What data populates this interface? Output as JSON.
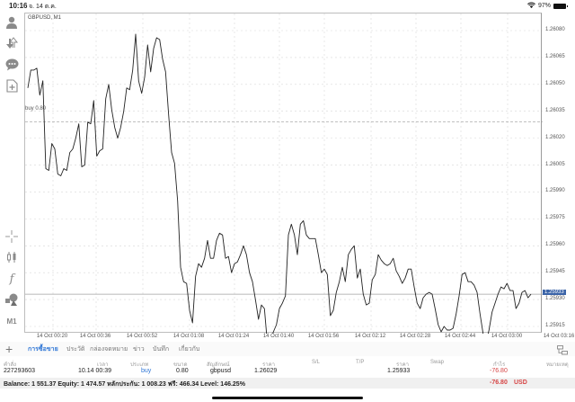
{
  "status_bar": {
    "time": "10:16",
    "date": "จ. 14 ต.ค.",
    "battery": "97%"
  },
  "chart": {
    "symbol_title": "GBPUSD, M1",
    "buy_line_label": "buy 0.80",
    "current_price": "1.25933"
  },
  "left_toolbar": {
    "items": [
      {
        "name": "account-icon"
      },
      {
        "name": "trade-icon"
      },
      {
        "name": "chat-icon"
      },
      {
        "name": "new-document-icon"
      },
      {
        "name": "crosshair-icon"
      },
      {
        "name": "candlestick-icon"
      },
      {
        "name": "indicator-icon"
      },
      {
        "name": "objects-icon"
      }
    ],
    "timeframe": "M1"
  },
  "chart_data": {
    "type": "line",
    "title": "GBPUSD, M1",
    "xlabel": "",
    "ylabel": "",
    "x_ticks": [
      "14 Oct 00:20",
      "14 Oct 00:36",
      "14 Oct 00:52",
      "14 Oct 01:08",
      "14 Oct 01:24",
      "14 Oct 01:40",
      "14 Oct 01:56",
      "14 Oct 02:12",
      "14 Oct 02:28",
      "14 Oct 02:44",
      "14 Oct 03:00",
      "14 Oct 03:16"
    ],
    "y_ticks": [
      "1.26080",
      "1.26065",
      "1.26050",
      "1.26035",
      "1.26020",
      "1.26005",
      "1.25990",
      "1.25975",
      "1.25960",
      "1.25945",
      "1.25930",
      "1.25915"
    ],
    "ylim": [
      1.25905,
      1.26088
    ],
    "grid": true,
    "horizontal_lines": [
      {
        "label": "buy 0.80",
        "value": 1.26029,
        "style": "dashed"
      },
      {
        "label": "bid",
        "value": 1.25933,
        "style": "solid"
      }
    ],
    "series": [
      {
        "name": "GBPUSD close",
        "values": [
          1.26048,
          1.26058,
          1.26058,
          1.26059,
          1.26044,
          1.26052,
          1.26003,
          1.26002,
          1.26017,
          1.26014,
          1.26,
          1.25999,
          1.26003,
          1.26002,
          1.26012,
          1.26014,
          1.2602,
          1.26028,
          1.26004,
          1.26005,
          1.26029,
          1.26028,
          1.26041,
          1.2601,
          1.26013,
          1.26014,
          1.26042,
          1.2605,
          1.26036,
          1.26026,
          1.2602,
          1.26026,
          1.26035,
          1.26048,
          1.26047,
          1.26058,
          1.26078,
          1.26052,
          1.26045,
          1.26054,
          1.26072,
          1.26057,
          1.2607,
          1.26076,
          1.26075,
          1.26064,
          1.26057,
          1.26033,
          1.26012,
          1.26006,
          1.25985,
          1.25948,
          1.2594,
          1.25939,
          1.25924,
          1.25917,
          1.25943,
          1.2595,
          1.25948,
          1.25953,
          1.25963,
          1.25953,
          1.25953,
          1.25963,
          1.25967,
          1.25966,
          1.25953,
          1.25954,
          1.25945,
          1.2595,
          1.25951,
          1.25955,
          1.2596,
          1.25955,
          1.25945,
          1.2594,
          1.2593,
          1.25919,
          1.25927,
          1.25925,
          1.25905,
          1.25907,
          1.25912,
          1.25916,
          1.25925,
          1.25928,
          1.25932,
          1.25966,
          1.25972,
          1.25966,
          1.25955,
          1.25972,
          1.25974,
          1.25966,
          1.25964,
          1.25964,
          1.25964,
          1.25955,
          1.25945,
          1.25947,
          1.25944,
          1.25921,
          1.25924,
          1.25934,
          1.2594,
          1.25948,
          1.2594,
          1.25955,
          1.25958,
          1.2596,
          1.25942,
          1.25947,
          1.25933,
          1.25927,
          1.25928,
          1.25941,
          1.25944,
          1.25955,
          1.25952,
          1.2595,
          1.25949,
          1.2595,
          1.25953,
          1.25946,
          1.25943,
          1.25939,
          1.25942,
          1.25947,
          1.25947,
          1.25937,
          1.25928,
          1.25925,
          1.25931,
          1.25933,
          1.25934,
          1.25933,
          1.25925,
          1.25916,
          1.25912,
          1.25915,
          1.25913,
          1.25913,
          1.25914,
          1.25922,
          1.25932,
          1.25944,
          1.25945,
          1.2594,
          1.2594,
          1.25938,
          1.25934,
          1.25922,
          1.25911,
          1.25906,
          1.25913,
          1.25923,
          1.25928,
          1.25933,
          1.25937,
          1.25936,
          1.25939,
          1.25935,
          1.25935,
          1.25925,
          1.25928,
          1.25934,
          1.25935,
          1.25931,
          1.25933
        ]
      }
    ]
  },
  "tabs": {
    "add_label": "+",
    "items": [
      {
        "label": "การซื้อขาย",
        "active": true
      },
      {
        "label": "ประวัติ",
        "active": false
      },
      {
        "label": "กล่องจดหมาย",
        "active": false
      },
      {
        "label": "ข่าว",
        "active": false
      },
      {
        "label": "บันทึก",
        "active": false
      },
      {
        "label": "เกี่ยวกับ",
        "active": false
      }
    ]
  },
  "orders_table": {
    "columns": [
      "คำสั่ง",
      "เวลา",
      "ประเภท",
      "ขนาด",
      "สัญลักษณ์",
      "ราคา",
      "S/L",
      "T/P",
      "ราคา",
      "Swap",
      "กำไร",
      "หมายเหตุ"
    ],
    "rows": [
      {
        "order": "227293603",
        "time": "10.14 00:39",
        "type": "buy",
        "size": "0.80",
        "symbol": "gbpusd",
        "open_price": "1.26029",
        "sl": "",
        "tp": "",
        "price": "1.25933",
        "swap": "",
        "profit": "-76.80",
        "comment": ""
      }
    ],
    "summary": {
      "text": "Balance: 1 551.37 Equity: 1 474.57 หลักประกัน: 1 008.23 ฟรี: 466.34 Level: 146.25%",
      "total_profit": "-76.80",
      "currency": "USD"
    }
  },
  "colors": {
    "accent": "#2f76d6",
    "loss": "#d64545",
    "price_tag": "#3b64a8"
  }
}
